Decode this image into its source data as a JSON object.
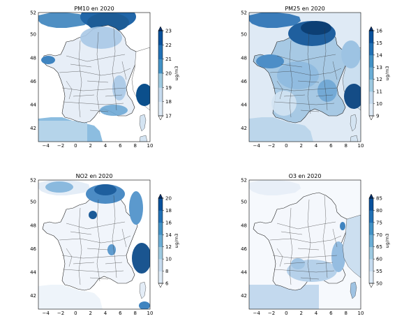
{
  "figure": {
    "panels": [
      {
        "id": "pm10",
        "title": "PM10 en 2020",
        "x_ticks": [
          "−4",
          "−2",
          "0",
          "2",
          "4",
          "6",
          "8",
          "10"
        ],
        "y_ticks": [
          "42",
          "44",
          "46",
          "48",
          "50",
          "52"
        ],
        "colorbar": {
          "unit": "ug/m3",
          "ticks": [
            "17",
            "18",
            "19",
            "20",
            "21",
            "22",
            "23"
          ],
          "vmin": 17,
          "vmax": 23
        }
      },
      {
        "id": "pm25",
        "title": "PM25 en 2020",
        "x_ticks": [
          "−4",
          "−2",
          "0",
          "2",
          "4",
          "6",
          "8",
          "10"
        ],
        "y_ticks": [
          "42",
          "44",
          "46",
          "48",
          "50",
          "52"
        ],
        "colorbar": {
          "unit": "ug/m3",
          "ticks": [
            "9",
            "10",
            "11",
            "12",
            "13",
            "14",
            "15",
            "16"
          ],
          "vmin": 9,
          "vmax": 16
        }
      },
      {
        "id": "no2",
        "title": "NO2 en 2020",
        "x_ticks": [
          "−4",
          "−2",
          "0",
          "2",
          "4",
          "6",
          "8",
          "10"
        ],
        "y_ticks": [
          "42",
          "44",
          "46",
          "48",
          "50",
          "52"
        ],
        "colorbar": {
          "unit": "ug/m3",
          "ticks": [
            "6",
            "8",
            "10",
            "12",
            "14",
            "16",
            "18",
            "20"
          ],
          "vmin": 6,
          "vmax": 20
        }
      },
      {
        "id": "o3",
        "title": "O3 en 2020",
        "x_ticks": [
          "−4",
          "−2",
          "0",
          "2",
          "4",
          "6",
          "8",
          "10"
        ],
        "y_ticks": [
          "42",
          "44",
          "46",
          "48",
          "50",
          "52"
        ],
        "colorbar": {
          "unit": "ug/m3",
          "ticks": [
            "50",
            "55",
            "60",
            "65",
            "70",
            "75",
            "80",
            "85"
          ],
          "vmin": 50,
          "vmax": 85
        }
      }
    ],
    "colors": {
      "colormap": [
        "#f7fbff",
        "#deebf7",
        "#c6dbef",
        "#9ecae1",
        "#6baed6",
        "#4292c6",
        "#2171b5",
        "#08519c",
        "#08306b"
      ]
    }
  }
}
